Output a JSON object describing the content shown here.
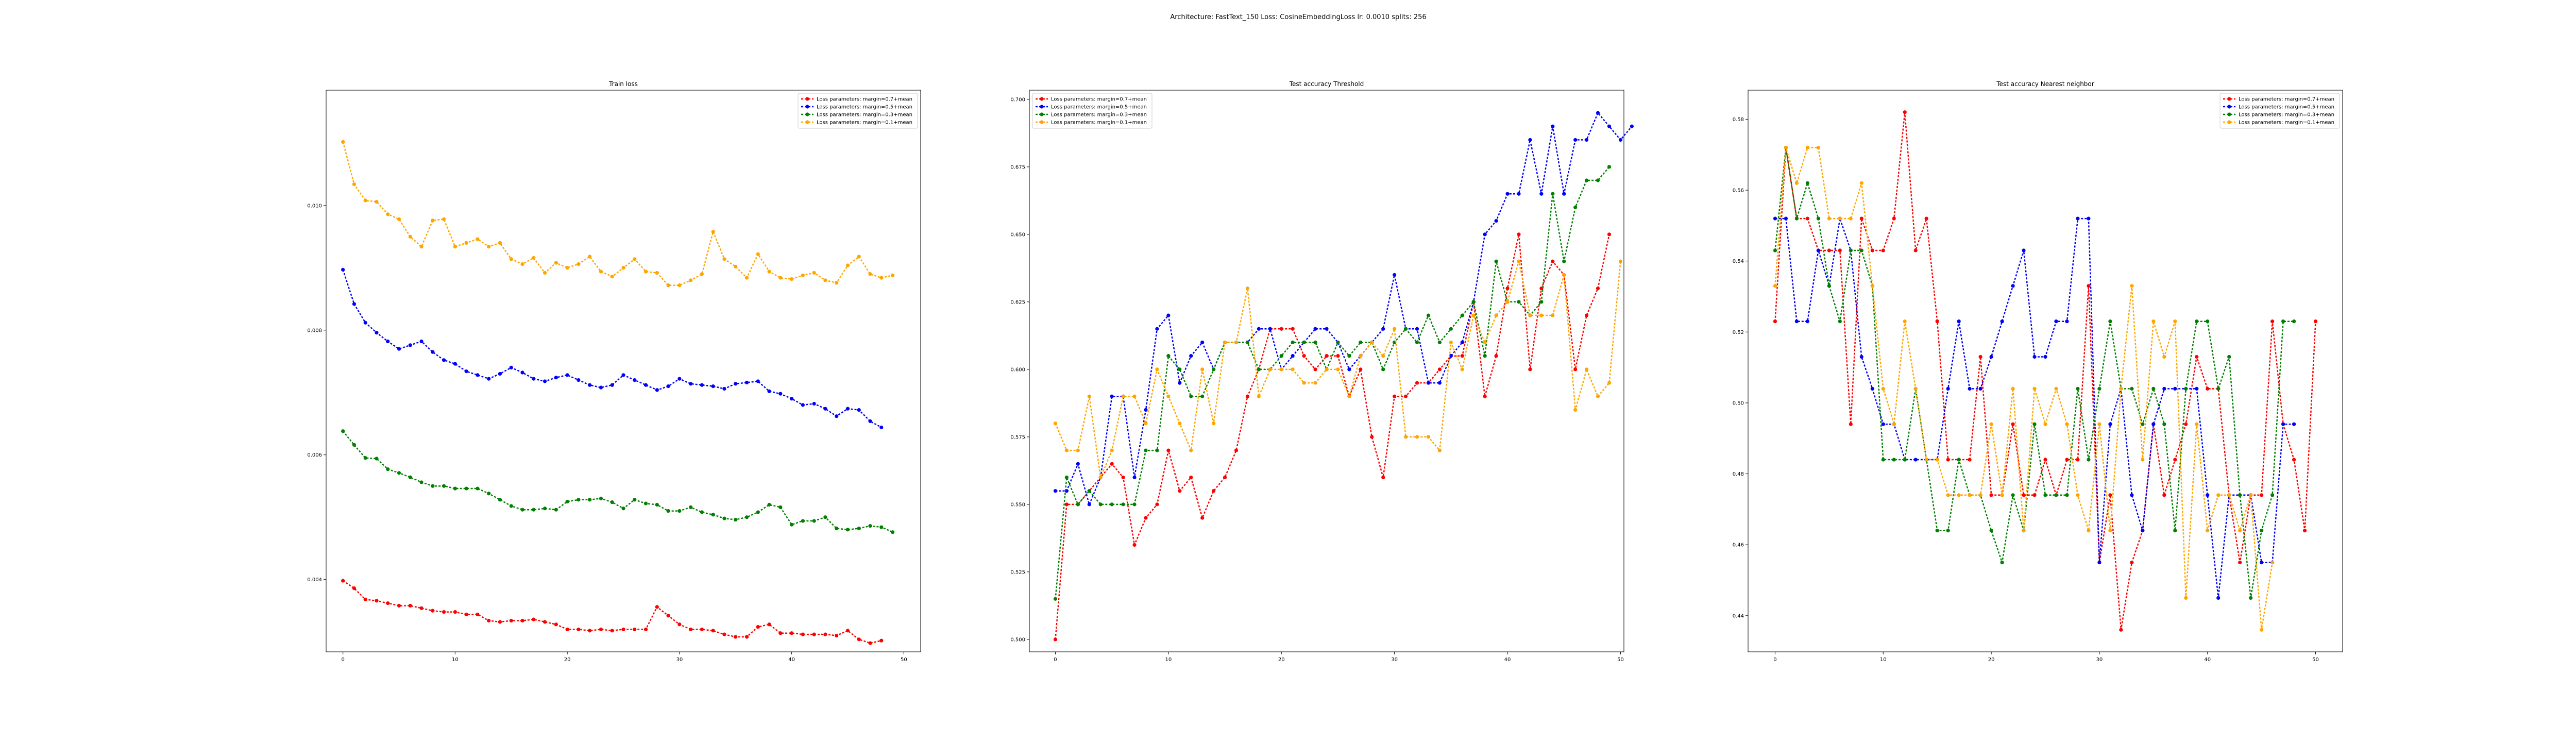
{
  "suptitle": "Architecture: FastText_150 Loss: CosineEmbeddingLoss lr: 0.0010 splits: 256",
  "colors": {
    "red": "#ff0000",
    "blue": "#0000ff",
    "green": "#008000",
    "orange": "#ffa500"
  },
  "legend_labels": [
    "Loss parameters: margin=0.7+mean",
    "Loss parameters: margin=0.5+mean",
    "Loss parameters: margin=0.3+mean",
    "Loss parameters: margin=0.1+mean"
  ],
  "chart_data": [
    {
      "type": "line",
      "title": "Train loss",
      "legend_position": "top-right",
      "xlim": [
        -1.5,
        51.5
      ],
      "ylim": [
        0.00284,
        0.01185
      ],
      "xticks": [
        0,
        10,
        20,
        30,
        40,
        50
      ],
      "yticks": [
        0.004,
        0.006,
        0.008,
        0.01
      ],
      "ytick_labels": [
        "0.004",
        "0.006",
        "0.008",
        "0.010"
      ],
      "series": [
        {
          "name": "Loss parameters: margin=0.7+mean",
          "color": "red",
          "values": [
            0.00398,
            0.00386,
            0.00368,
            0.00366,
            0.00362,
            0.00358,
            0.00358,
            0.00354,
            0.0035,
            0.00348,
            0.00348,
            0.00344,
            0.00344,
            0.00334,
            0.00332,
            0.00334,
            0.00334,
            0.00336,
            0.00332,
            0.00328,
            0.0032,
            0.0032,
            0.00318,
            0.0032,
            0.00318,
            0.0032,
            0.0032,
            0.0032,
            0.00356,
            0.00342,
            0.00328,
            0.0032,
            0.0032,
            0.00318,
            0.00312,
            0.00308,
            0.00308,
            0.00324,
            0.00328,
            0.00314,
            0.00314,
            0.00312,
            0.00312,
            0.00312,
            0.0031,
            0.00318,
            0.00304,
            0.00298,
            0.00302
          ]
        },
        {
          "name": "Loss parameters: margin=0.5+mean",
          "color": "blue",
          "values": [
            0.00897,
            0.00842,
            0.00812,
            0.00796,
            0.00782,
            0.0077,
            0.00776,
            0.00782,
            0.00765,
            0.00752,
            0.00746,
            0.00734,
            0.00728,
            0.00722,
            0.0073,
            0.0074,
            0.00732,
            0.00722,
            0.00718,
            0.00724,
            0.00728,
            0.0072,
            0.00712,
            0.00708,
            0.00712,
            0.00728,
            0.0072,
            0.00712,
            0.00704,
            0.0071,
            0.00722,
            0.00714,
            0.00712,
            0.0071,
            0.00706,
            0.00714,
            0.00716,
            0.00718,
            0.00702,
            0.00698,
            0.0069,
            0.0068,
            0.00682,
            0.00674,
            0.00662,
            0.00674,
            0.00672,
            0.00654,
            0.00644
          ]
        },
        {
          "name": "Loss parameters: margin=0.3+mean",
          "color": "green",
          "values": [
            0.00638,
            0.00616,
            0.00595,
            0.00594,
            0.00577,
            0.00571,
            0.00564,
            0.00556,
            0.0055,
            0.0055,
            0.00546,
            0.00546,
            0.00546,
            0.00538,
            0.00528,
            0.00518,
            0.00512,
            0.00512,
            0.00514,
            0.00512,
            0.00525,
            0.00528,
            0.00528,
            0.0053,
            0.00524,
            0.00514,
            0.00528,
            0.00522,
            0.0052,
            0.0051,
            0.0051,
            0.00516,
            0.00508,
            0.00504,
            0.00498,
            0.00496,
            0.005,
            0.00508,
            0.0052,
            0.00516,
            0.00488,
            0.00494,
            0.00494,
            0.005,
            0.00482,
            0.0048,
            0.00482,
            0.00486,
            0.00484,
            0.00476
          ]
        },
        {
          "name": "Loss parameters: margin=0.1+mean",
          "color": "orange",
          "values": [
            0.01102,
            0.01034,
            0.01008,
            0.01006,
            0.00986,
            0.00978,
            0.0095,
            0.00934,
            0.00976,
            0.00978,
            0.00934,
            0.0094,
            0.00946,
            0.00934,
            0.0094,
            0.00914,
            0.00906,
            0.00916,
            0.00892,
            0.00908,
            0.009,
            0.00906,
            0.00918,
            0.00894,
            0.00886,
            0.009,
            0.00914,
            0.00894,
            0.00892,
            0.00872,
            0.00872,
            0.0088,
            0.0089,
            0.00958,
            0.00914,
            0.00902,
            0.00884,
            0.00922,
            0.00894,
            0.00884,
            0.00882,
            0.00888,
            0.00892,
            0.0088,
            0.00876,
            0.00904,
            0.00918,
            0.0089,
            0.00884,
            0.00888
          ]
        }
      ]
    },
    {
      "type": "line",
      "title": "Test accuracy Threshold",
      "legend_position": "top-left",
      "xlim": [
        -2.3,
        50.3
      ],
      "ylim": [
        0.4954,
        0.7034
      ],
      "xticks": [
        0,
        10,
        20,
        30,
        40,
        50
      ],
      "yticks": [
        0.5,
        0.525,
        0.55,
        0.575,
        0.6,
        0.625,
        0.65,
        0.675,
        0.7
      ],
      "ytick_labels": [
        "0.500",
        "0.525",
        "0.550",
        "0.575",
        "0.600",
        "0.625",
        "0.650",
        "0.675",
        "0.700"
      ],
      "series": [
        {
          "name": "Loss parameters: margin=0.7+mean",
          "color": "red",
          "values": [
            0.5,
            0.55,
            0.55,
            0.555,
            0.56,
            0.565,
            0.56,
            0.535,
            0.545,
            0.55,
            0.57,
            0.555,
            0.56,
            0.545,
            0.555,
            0.56,
            0.57,
            0.59,
            0.6,
            0.615,
            0.615,
            0.615,
            0.605,
            0.6,
            0.605,
            0.605,
            0.59,
            0.6,
            0.575,
            0.56,
            0.59,
            0.59,
            0.595,
            0.595,
            0.6,
            0.605,
            0.605,
            0.625,
            0.59,
            0.605,
            0.63,
            0.65,
            0.6,
            0.63,
            0.64,
            0.635,
            0.6,
            0.62,
            0.63,
            0.65
          ]
        },
        {
          "name": "Loss parameters: margin=0.5+mean",
          "color": "blue",
          "values": [
            0.555,
            0.555,
            0.565,
            0.55,
            0.56,
            0.59,
            0.59,
            0.56,
            0.585,
            0.615,
            0.62,
            0.595,
            0.605,
            0.61,
            0.6,
            0.61,
            0.61,
            0.61,
            0.615,
            0.615,
            0.6,
            0.605,
            0.61,
            0.615,
            0.615,
            0.61,
            0.6,
            0.605,
            0.61,
            0.615,
            0.635,
            0.615,
            0.615,
            0.595,
            0.595,
            0.605,
            0.61,
            0.625,
            0.65,
            0.655,
            0.665,
            0.665,
            0.685,
            0.665,
            0.69,
            0.665,
            0.685,
            0.685,
            0.695,
            0.69,
            0.685,
            0.69
          ]
        },
        {
          "name": "Loss parameters: margin=0.3+mean",
          "color": "green",
          "values": [
            0.515,
            0.56,
            0.55,
            0.555,
            0.55,
            0.55,
            0.55,
            0.55,
            0.57,
            0.57,
            0.605,
            0.6,
            0.59,
            0.59,
            0.6,
            0.61,
            0.61,
            0.61,
            0.6,
            0.6,
            0.605,
            0.61,
            0.61,
            0.61,
            0.6,
            0.61,
            0.605,
            0.61,
            0.61,
            0.6,
            0.61,
            0.615,
            0.61,
            0.62,
            0.61,
            0.615,
            0.62,
            0.625,
            0.605,
            0.64,
            0.625,
            0.625,
            0.62,
            0.625,
            0.665,
            0.64,
            0.66,
            0.67,
            0.67,
            0.675
          ]
        },
        {
          "name": "Loss parameters: margin=0.1+mean",
          "color": "orange",
          "values": [
            0.58,
            0.57,
            0.57,
            0.59,
            0.56,
            0.57,
            0.59,
            0.59,
            0.58,
            0.6,
            0.59,
            0.58,
            0.57,
            0.6,
            0.58,
            0.61,
            0.61,
            0.63,
            0.59,
            0.6,
            0.6,
            0.6,
            0.595,
            0.595,
            0.6,
            0.6,
            0.59,
            0.605,
            0.61,
            0.605,
            0.615,
            0.575,
            0.575,
            0.575,
            0.57,
            0.61,
            0.6,
            0.62,
            0.61,
            0.62,
            0.625,
            0.64,
            0.62,
            0.62,
            0.62,
            0.635,
            0.585,
            0.6,
            0.59,
            0.595,
            0.64
          ]
        }
      ]
    },
    {
      "type": "line",
      "title": "Test accuracy Nearest neighbor",
      "legend_position": "top-right",
      "xlim": [
        -2.5,
        52.5
      ],
      "ylim": [
        0.4298,
        0.5882
      ],
      "xticks": [
        0,
        10,
        20,
        30,
        40,
        50
      ],
      "yticks": [
        0.44,
        0.46,
        0.48,
        0.5,
        0.52,
        0.54,
        0.56,
        0.58
      ],
      "ytick_labels": [
        "0.44",
        "0.46",
        "0.48",
        "0.50",
        "0.52",
        "0.54",
        "0.56",
        "0.58"
      ],
      "series": [
        {
          "name": "Loss parameters: margin=0.7+mean",
          "color": "red",
          "values": [
            0.523,
            0.572,
            0.552,
            0.552,
            0.543,
            0.543,
            0.543,
            0.494,
            0.552,
            0.543,
            0.543,
            0.552,
            0.582,
            0.543,
            0.552,
            0.523,
            0.484,
            0.484,
            0.484,
            0.513,
            0.474,
            0.474,
            0.494,
            0.474,
            0.474,
            0.484,
            0.474,
            0.484,
            0.484,
            0.533,
            0.455,
            0.474,
            0.436,
            0.455,
            0.464,
            0.494,
            0.474,
            0.484,
            0.494,
            0.513,
            0.504,
            0.504,
            0.474,
            0.455,
            0.474,
            0.474,
            0.523,
            0.494,
            0.484,
            0.464,
            0.523
          ]
        },
        {
          "name": "Loss parameters: margin=0.5+mean",
          "color": "blue",
          "values": [
            0.552,
            0.552,
            0.523,
            0.523,
            0.543,
            0.533,
            0.552,
            0.543,
            0.513,
            0.504,
            0.494,
            0.494,
            0.484,
            0.484,
            0.484,
            0.484,
            0.504,
            0.523,
            0.504,
            0.504,
            0.513,
            0.523,
            0.533,
            0.543,
            0.513,
            0.513,
            0.523,
            0.523,
            0.552,
            0.552,
            0.455,
            0.494,
            0.504,
            0.474,
            0.464,
            0.494,
            0.504,
            0.504,
            0.504,
            0.504,
            0.474,
            0.445,
            0.474,
            0.474,
            0.474,
            0.455,
            0.455,
            0.494,
            0.494
          ]
        },
        {
          "name": "Loss parameters: margin=0.3+mean",
          "color": "green",
          "values": [
            0.543,
            0.572,
            0.552,
            0.562,
            0.552,
            0.533,
            0.523,
            0.543,
            0.543,
            0.533,
            0.484,
            0.484,
            0.484,
            0.504,
            0.484,
            0.464,
            0.464,
            0.484,
            0.474,
            0.474,
            0.464,
            0.455,
            0.474,
            0.464,
            0.494,
            0.474,
            0.474,
            0.474,
            0.504,
            0.484,
            0.504,
            0.523,
            0.504,
            0.504,
            0.494,
            0.504,
            0.494,
            0.464,
            0.504,
            0.523,
            0.523,
            0.504,
            0.513,
            0.474,
            0.445,
            0.464,
            0.474,
            0.523,
            0.523
          ]
        },
        {
          "name": "Loss parameters: margin=0.1+mean",
          "color": "orange",
          "values": [
            0.533,
            0.572,
            0.562,
            0.572,
            0.572,
            0.552,
            0.552,
            0.552,
            0.562,
            0.533,
            0.504,
            0.494,
            0.523,
            0.504,
            0.484,
            0.484,
            0.474,
            0.474,
            0.474,
            0.474,
            0.494,
            0.474,
            0.504,
            0.464,
            0.504,
            0.494,
            0.504,
            0.494,
            0.474,
            0.464,
            0.494,
            0.464,
            0.504,
            0.533,
            0.484,
            0.523,
            0.513,
            0.523,
            0.445,
            0.494,
            0.464,
            0.474,
            0.474,
            0.464,
            0.474,
            0.436,
            0.455
          ]
        }
      ]
    }
  ]
}
